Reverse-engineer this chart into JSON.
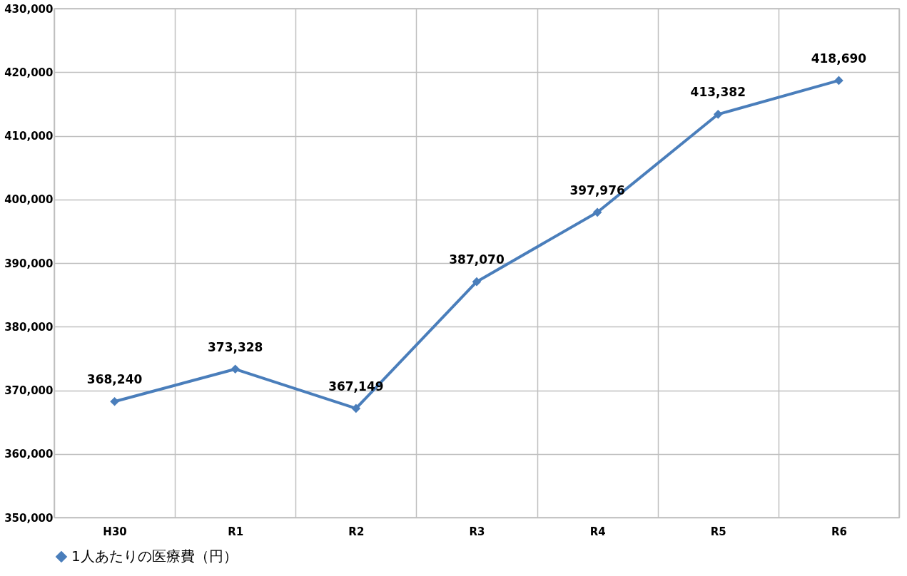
{
  "chart_data": {
    "type": "line",
    "categories": [
      "H30",
      "R1",
      "R2",
      "R3",
      "R4",
      "R5",
      "R6"
    ],
    "series": [
      {
        "name": "1人あたりの医療費（円）",
        "color": "#4a7ebb",
        "values": [
          368240,
          373328,
          367149,
          387070,
          397976,
          413382,
          418690
        ],
        "value_labels": [
          "368,240",
          "373,328",
          "367,149",
          "387,070",
          "397,976",
          "413,382",
          "418,690"
        ]
      }
    ],
    "ylim": [
      350000,
      430000
    ],
    "yticks": [
      {
        "value": 350000,
        "label": "350,000"
      },
      {
        "value": 360000,
        "label": "360,000"
      },
      {
        "value": 370000,
        "label": "370,000"
      },
      {
        "value": 380000,
        "label": "380,000"
      },
      {
        "value": 390000,
        "label": "390,000"
      },
      {
        "value": 400000,
        "label": "400,000"
      },
      {
        "value": 410000,
        "label": "410,000"
      },
      {
        "value": 420000,
        "label": "420,000"
      },
      {
        "value": 430000,
        "label": "430,000"
      }
    ],
    "grid": true,
    "legend": "bottom",
    "marker": "diamond",
    "line_style": "solid"
  }
}
